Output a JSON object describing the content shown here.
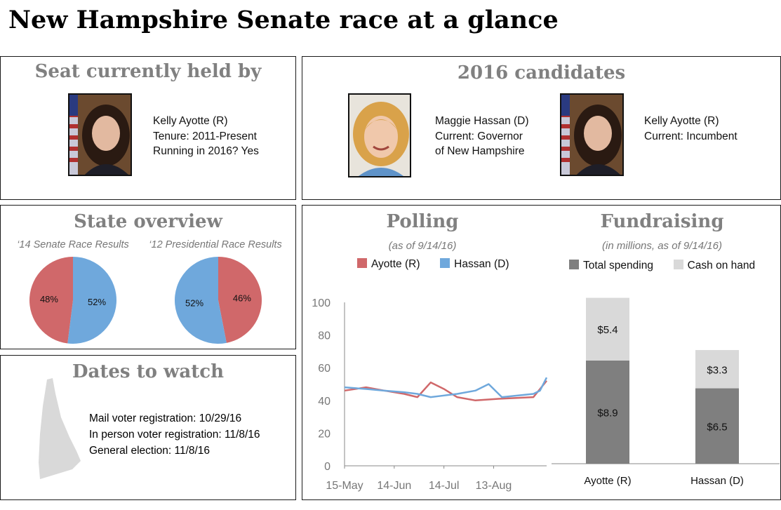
{
  "page_title": "New Hampshire Senate race at a glance",
  "seat": {
    "title": "Seat currently held by",
    "photo_icon": "kelly-ayotte-portrait",
    "name": "Kelly Ayotte (R)",
    "tenure": "Tenure: 2011-Present",
    "running": "Running in 2016? Yes"
  },
  "candidates": {
    "title": "2016 candidates",
    "items": [
      {
        "photo_icon": "maggie-hassan-portrait",
        "name": "Maggie Hassan (D)",
        "line1": "Current: Governor",
        "line2": "of New Hampshire"
      },
      {
        "photo_icon": "kelly-ayotte-portrait",
        "name": "Kelly Ayotte (R)",
        "line1": "Current: Incumbent",
        "line2": ""
      }
    ]
  },
  "state_overview": {
    "title": "State overview"
  },
  "dates": {
    "title": "Dates to watch",
    "map_icon": "new-hampshire-map-icon",
    "items": [
      "Mail voter registration: 10/29/16",
      "In person voter registration: 11/8/16",
      "General election: 11/8/16"
    ]
  },
  "polling": {
    "title": "Polling",
    "subtitle": "(as of 9/14/16)"
  },
  "fundraising": {
    "title": "Fundraising",
    "subtitle": "(in millions, as of 9/14/16)"
  },
  "colors": {
    "republican": "#d0686a",
    "democrat": "#6fa8dc",
    "total_spending": "#7f7f7f",
    "cash_on_hand": "#d9d9d9"
  },
  "chart_data": [
    {
      "type": "pie",
      "title": "‘14 Senate Race Results",
      "slices": [
        {
          "name": "Republican",
          "value": 48,
          "label": "48%"
        },
        {
          "name": "Democrat",
          "value": 52,
          "label": "52%"
        }
      ]
    },
    {
      "type": "pie",
      "title": "‘12 Presidential Race Results",
      "slices": [
        {
          "name": "Republican",
          "value": 46,
          "label": "46%"
        },
        {
          "name": "Democrat",
          "value": 52,
          "label": "52%"
        }
      ]
    },
    {
      "type": "line",
      "title": "Polling",
      "x_ticks": [
        "15-May",
        "14-Jun",
        "14-Jul",
        "13-Aug"
      ],
      "x_tick_dates": [
        "2016-05-15",
        "2016-06-14",
        "2016-07-14",
        "2016-08-13"
      ],
      "xlim": [
        "2016-05-15",
        "2016-09-14"
      ],
      "ylim": [
        0,
        100
      ],
      "y_ticks": [
        0,
        20,
        40,
        60,
        80,
        100
      ],
      "legend": "top",
      "series": [
        {
          "name": "Ayotte (R)",
          "x": [
            "2016-05-15",
            "2016-05-28",
            "2016-06-08",
            "2016-06-20",
            "2016-06-28",
            "2016-07-06",
            "2016-07-14",
            "2016-07-22",
            "2016-08-02",
            "2016-08-16",
            "2016-09-06",
            "2016-09-10",
            "2016-09-14"
          ],
          "y": [
            46,
            48,
            46,
            44,
            42,
            51,
            47,
            42,
            40,
            41,
            42,
            47,
            52
          ]
        },
        {
          "name": "Hassan (D)",
          "x": [
            "2016-05-15",
            "2016-05-28",
            "2016-06-08",
            "2016-06-20",
            "2016-06-28",
            "2016-07-06",
            "2016-07-14",
            "2016-07-22",
            "2016-08-02",
            "2016-08-10",
            "2016-08-18",
            "2016-09-06",
            "2016-09-10",
            "2016-09-14"
          ],
          "y": [
            48,
            47,
            46,
            45,
            44,
            42,
            43,
            44,
            46,
            50,
            42,
            44,
            46,
            54
          ]
        }
      ]
    },
    {
      "type": "bar",
      "title": "Fundraising",
      "stacked": true,
      "categories": [
        "Ayotte (R)",
        "Hassan (D)"
      ],
      "ylim": [
        0,
        15
      ],
      "legend": "top",
      "series": [
        {
          "name": "Total spending",
          "values": [
            8.9,
            6.5
          ],
          "labels": [
            "$8.9",
            "$6.5"
          ]
        },
        {
          "name": "Cash on hand",
          "values": [
            5.4,
            3.3
          ],
          "labels": [
            "$5.4",
            "$3.3"
          ]
        }
      ]
    }
  ]
}
